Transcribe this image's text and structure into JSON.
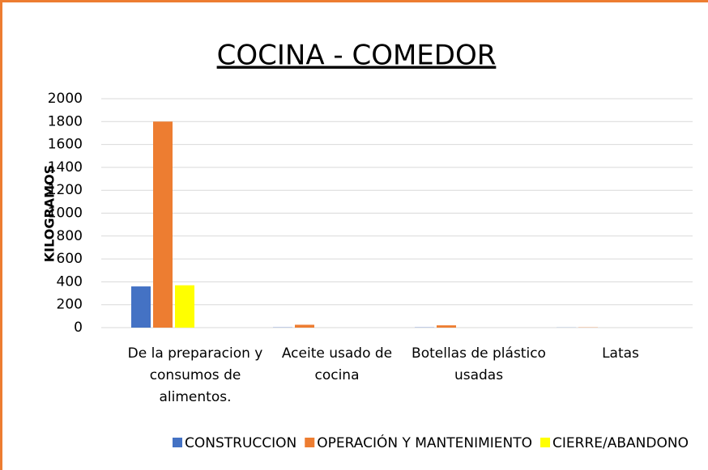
{
  "chart_data": {
    "type": "bar",
    "title": "COCINA - COMEDOR",
    "y_label": "KILOGRAMOS",
    "categories": [
      "De la preparacion y consumos de alimentos.",
      "Aceite usado de cocina",
      "Botellas de plástico usadas",
      "Latas"
    ],
    "series": [
      {
        "name": "CONSTRUCCION",
        "color": "#4472c4",
        "values": [
          360,
          2,
          2,
          1
        ]
      },
      {
        "name": "OPERACIÓN Y MANTENIMIENTO",
        "color": "#ed7d31",
        "values": [
          1800,
          25,
          20,
          2
        ]
      },
      {
        "name": "CIERRE/ABANDONO",
        "color": "#ffff00",
        "values": [
          370,
          0,
          0,
          0
        ]
      }
    ],
    "ylim": [
      0,
      2000
    ],
    "yticks": [
      0,
      200,
      400,
      600,
      800,
      1000,
      1200,
      1400,
      1600,
      1800,
      2000
    ],
    "grid": true,
    "legend": "bottom"
  }
}
